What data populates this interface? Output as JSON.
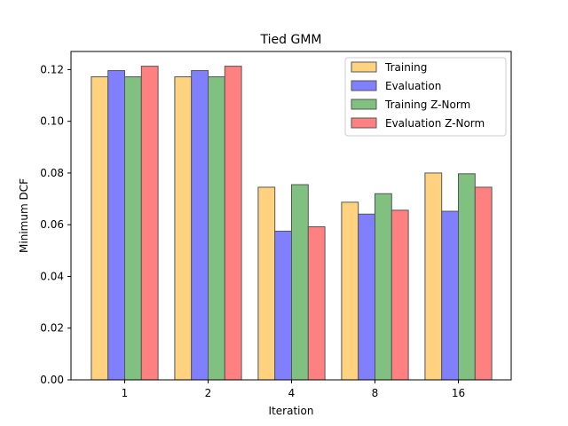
{
  "chart_data": {
    "type": "bar",
    "title": "Tied GMM",
    "xlabel": "Iteration",
    "ylabel": "Minimum DCF",
    "categories": [
      "1",
      "2",
      "4",
      "8",
      "16"
    ],
    "ylim": [
      0,
      0.127
    ],
    "yticks": [
      "0.00",
      "0.02",
      "0.04",
      "0.06",
      "0.08",
      "0.10",
      "0.12"
    ],
    "ytick_values": [
      0,
      0.02,
      0.04,
      0.06,
      0.08,
      0.1,
      0.12
    ],
    "grid": false,
    "legend_position": "top-right",
    "series": [
      {
        "name": "Training",
        "color": "#ffd280",
        "values": [
          0.1172,
          0.1172,
          0.0745,
          0.0687,
          0.08
        ]
      },
      {
        "name": "Evaluation",
        "color": "#8080ff",
        "values": [
          0.1196,
          0.1196,
          0.0575,
          0.0641,
          0.0652
        ]
      },
      {
        "name": "Training Z-Norm",
        "color": "#80c080",
        "values": [
          0.1172,
          0.1172,
          0.0755,
          0.072,
          0.0797
        ]
      },
      {
        "name": "Evaluation Z-Norm",
        "color": "#ff8080",
        "values": [
          0.1213,
          0.1213,
          0.0592,
          0.0656,
          0.0745
        ]
      }
    ]
  }
}
